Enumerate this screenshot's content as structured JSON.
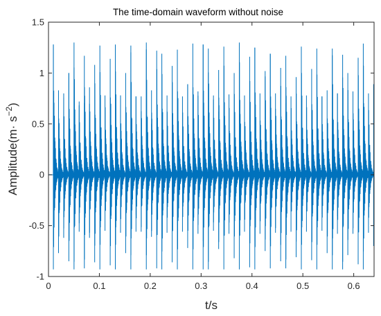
{
  "colors": {
    "series": "#0072BD",
    "axis": "#262626"
  },
  "chart_data": {
    "type": "line",
    "title": "The time-domain waveform without noise",
    "xlabel": "t/s",
    "ylabel_main": "Amplitude(m",
    "ylabel_dot": "·",
    "ylabel_s": " s",
    "ylabel_exp": "−2",
    "ylabel_close": ")",
    "xlim": [
      0,
      0.64
    ],
    "ylim": [
      -1,
      1.5
    ],
    "xticks": [
      0,
      0.1,
      0.2,
      0.3,
      0.4,
      0.5,
      0.6
    ],
    "xtick_labels": [
      "0",
      "0.1",
      "0.2",
      "0.3",
      "0.4",
      "0.5",
      "0.6"
    ],
    "yticks": [
      -1,
      -0.5,
      0,
      0.5,
      1,
      1.5
    ],
    "ytick_labels": [
      "-1",
      "-0.5",
      "0",
      "0.5",
      "1",
      "1.5"
    ],
    "grid": false,
    "series": [
      {
        "impulse_times": [
          0.0096,
          0.0197,
          0.0299,
          0.04,
          0.0502,
          0.0603,
          0.0705,
          0.0806,
          0.0908,
          0.101,
          0.1111,
          0.1213,
          0.1314,
          0.1416,
          0.1517,
          0.1619,
          0.172,
          0.1822,
          0.1923,
          0.2025,
          0.2127,
          0.2228,
          0.233,
          0.2431,
          0.2533,
          0.2634,
          0.2736,
          0.2837,
          0.2939,
          0.304,
          0.3142,
          0.3243,
          0.3345,
          0.3447,
          0.3548,
          0.365,
          0.3751,
          0.3853,
          0.3954,
          0.4056,
          0.4157,
          0.4259,
          0.436,
          0.4462,
          0.4564,
          0.4665,
          0.4767,
          0.4868,
          0.497,
          0.5071,
          0.5173,
          0.5274,
          0.5376,
          0.5477,
          0.5579,
          0.568,
          0.5782,
          0.5884,
          0.5985,
          0.6087,
          0.6188,
          0.629,
          0.6391
        ],
        "impulse_peaks": [
          1.28,
          0.83,
          0.8,
          1.0,
          1.3,
          0.72,
          1.17,
          0.86,
          1.08,
          1.27,
          0.78,
          1.14,
          1.28,
          0.78,
          1.0,
          1.27,
          0.77,
          0.77,
          1.3,
          0.83,
          1.22,
          1.19,
          0.78,
          1.07,
          1.23,
          0.77,
          0.89,
          1.29,
          0.82,
          1.28,
          1.24,
          0.78,
          1.03,
          1.26,
          0.79,
          1.0,
          1.3,
          0.78,
          1.16,
          1.25,
          0.8,
          1.02,
          1.19,
          0.8,
          1.05,
          1.17,
          0.77,
          0.96,
          1.26,
          0.78,
          1.04,
          1.24,
          0.77,
          0.83,
          1.24,
          0.8,
          1.18,
          1.0,
          0.82,
          1.15,
          1.29,
          0.8,
          0.89
        ],
        "impulse_troughs": [
          -0.93,
          -0.77,
          -0.62,
          -0.85,
          -0.93,
          -0.56,
          -0.92,
          -0.62,
          -0.86,
          -0.93,
          -0.55,
          -0.89,
          -0.93,
          -0.57,
          -0.77,
          -0.93,
          -0.56,
          -0.56,
          -0.93,
          -0.61,
          -0.92,
          -0.93,
          -0.57,
          -0.86,
          -0.93,
          -0.56,
          -0.72,
          -0.93,
          -0.58,
          -0.93,
          -0.93,
          -0.55,
          -0.73,
          -0.93,
          -0.58,
          -0.82,
          -0.93,
          -0.56,
          -0.91,
          -0.93,
          -0.58,
          -0.75,
          -0.92,
          -0.57,
          -0.85,
          -0.92,
          -0.56,
          -0.81,
          -0.93,
          -0.56,
          -0.84,
          -0.93,
          -0.55,
          -0.77,
          -0.93,
          -0.58,
          -0.93,
          -0.79,
          -0.58,
          -0.88,
          -0.93,
          -0.57,
          -0.7
        ],
        "decay_rate": 380,
        "ring_freq": 2400
      }
    ]
  }
}
